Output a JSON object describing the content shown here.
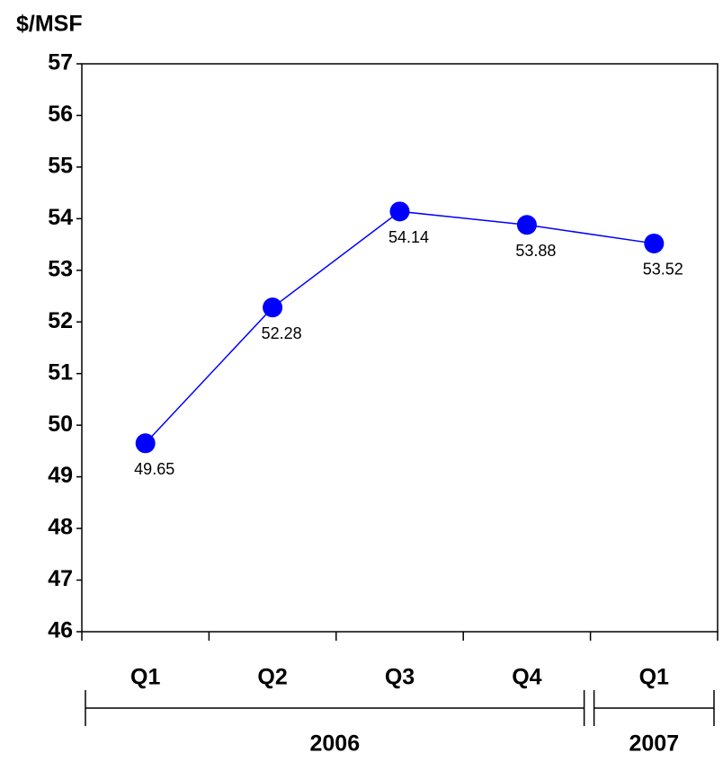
{
  "chart_data": {
    "type": "line",
    "y_label": "$/MSF",
    "categories": [
      "Q1",
      "Q2",
      "Q3",
      "Q4",
      "Q1"
    ],
    "groups": [
      {
        "label": "2006",
        "span": 4
      },
      {
        "label": "2007",
        "span": 1
      }
    ],
    "series": [
      {
        "color": "#0000ff",
        "values": [
          49.65,
          52.28,
          54.14,
          53.88,
          53.52
        ]
      }
    ],
    "ylim": [
      46,
      57
    ],
    "yticks": [
      46,
      47,
      48,
      49,
      50,
      51,
      52,
      53,
      54,
      55,
      56,
      57
    ]
  }
}
